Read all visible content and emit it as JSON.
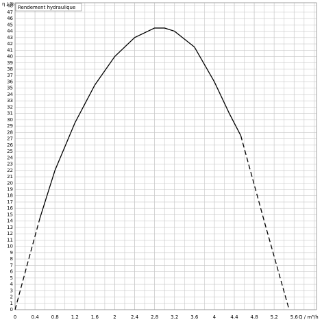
{
  "chart_data": {
    "type": "line",
    "title": "Rendement hydraulique",
    "y_label": "η / %",
    "x_label": "Q / m³/h",
    "xlim": [
      0,
      6.05
    ],
    "ylim": [
      0,
      48.5
    ],
    "xticks": [
      0,
      0.4,
      0.8,
      1.2,
      1.6,
      2,
      2.4,
      2.8,
      3.2,
      3.6,
      4,
      4.4,
      4.8,
      5.2,
      5.6
    ],
    "yticks": [
      0,
      1,
      2,
      3,
      4,
      5,
      6,
      7,
      8,
      9,
      10,
      11,
      12,
      13,
      14,
      15,
      16,
      17,
      18,
      19,
      20,
      21,
      22,
      23,
      24,
      25,
      26,
      27,
      28,
      29,
      30,
      31,
      32,
      33,
      34,
      35,
      36,
      37,
      38,
      39,
      40,
      41,
      42,
      43,
      44,
      45,
      46,
      47,
      48
    ],
    "minor_grid_step": 0.2,
    "grid": true,
    "series": [
      {
        "color": "#000000",
        "dashed": true,
        "x": [
          0,
          0.25,
          0.5
        ],
        "values": [
          0,
          7.3,
          14.5
        ]
      },
      {
        "color": "#000000",
        "dashed": false,
        "x": [
          0.5,
          0.8,
          1.2,
          1.6,
          2.0,
          2.4,
          2.8,
          3.0,
          3.2,
          3.6,
          4.0,
          4.3,
          4.53
        ],
        "values": [
          14.5,
          22,
          29.5,
          35.5,
          40,
          43,
          44.5,
          44.5,
          44,
          41.5,
          36,
          31,
          27.5
        ]
      },
      {
        "color": "#000000",
        "dashed": true,
        "x": [
          4.53,
          5.0,
          5.5
        ],
        "values": [
          27.5,
          14,
          0
        ]
      }
    ]
  }
}
